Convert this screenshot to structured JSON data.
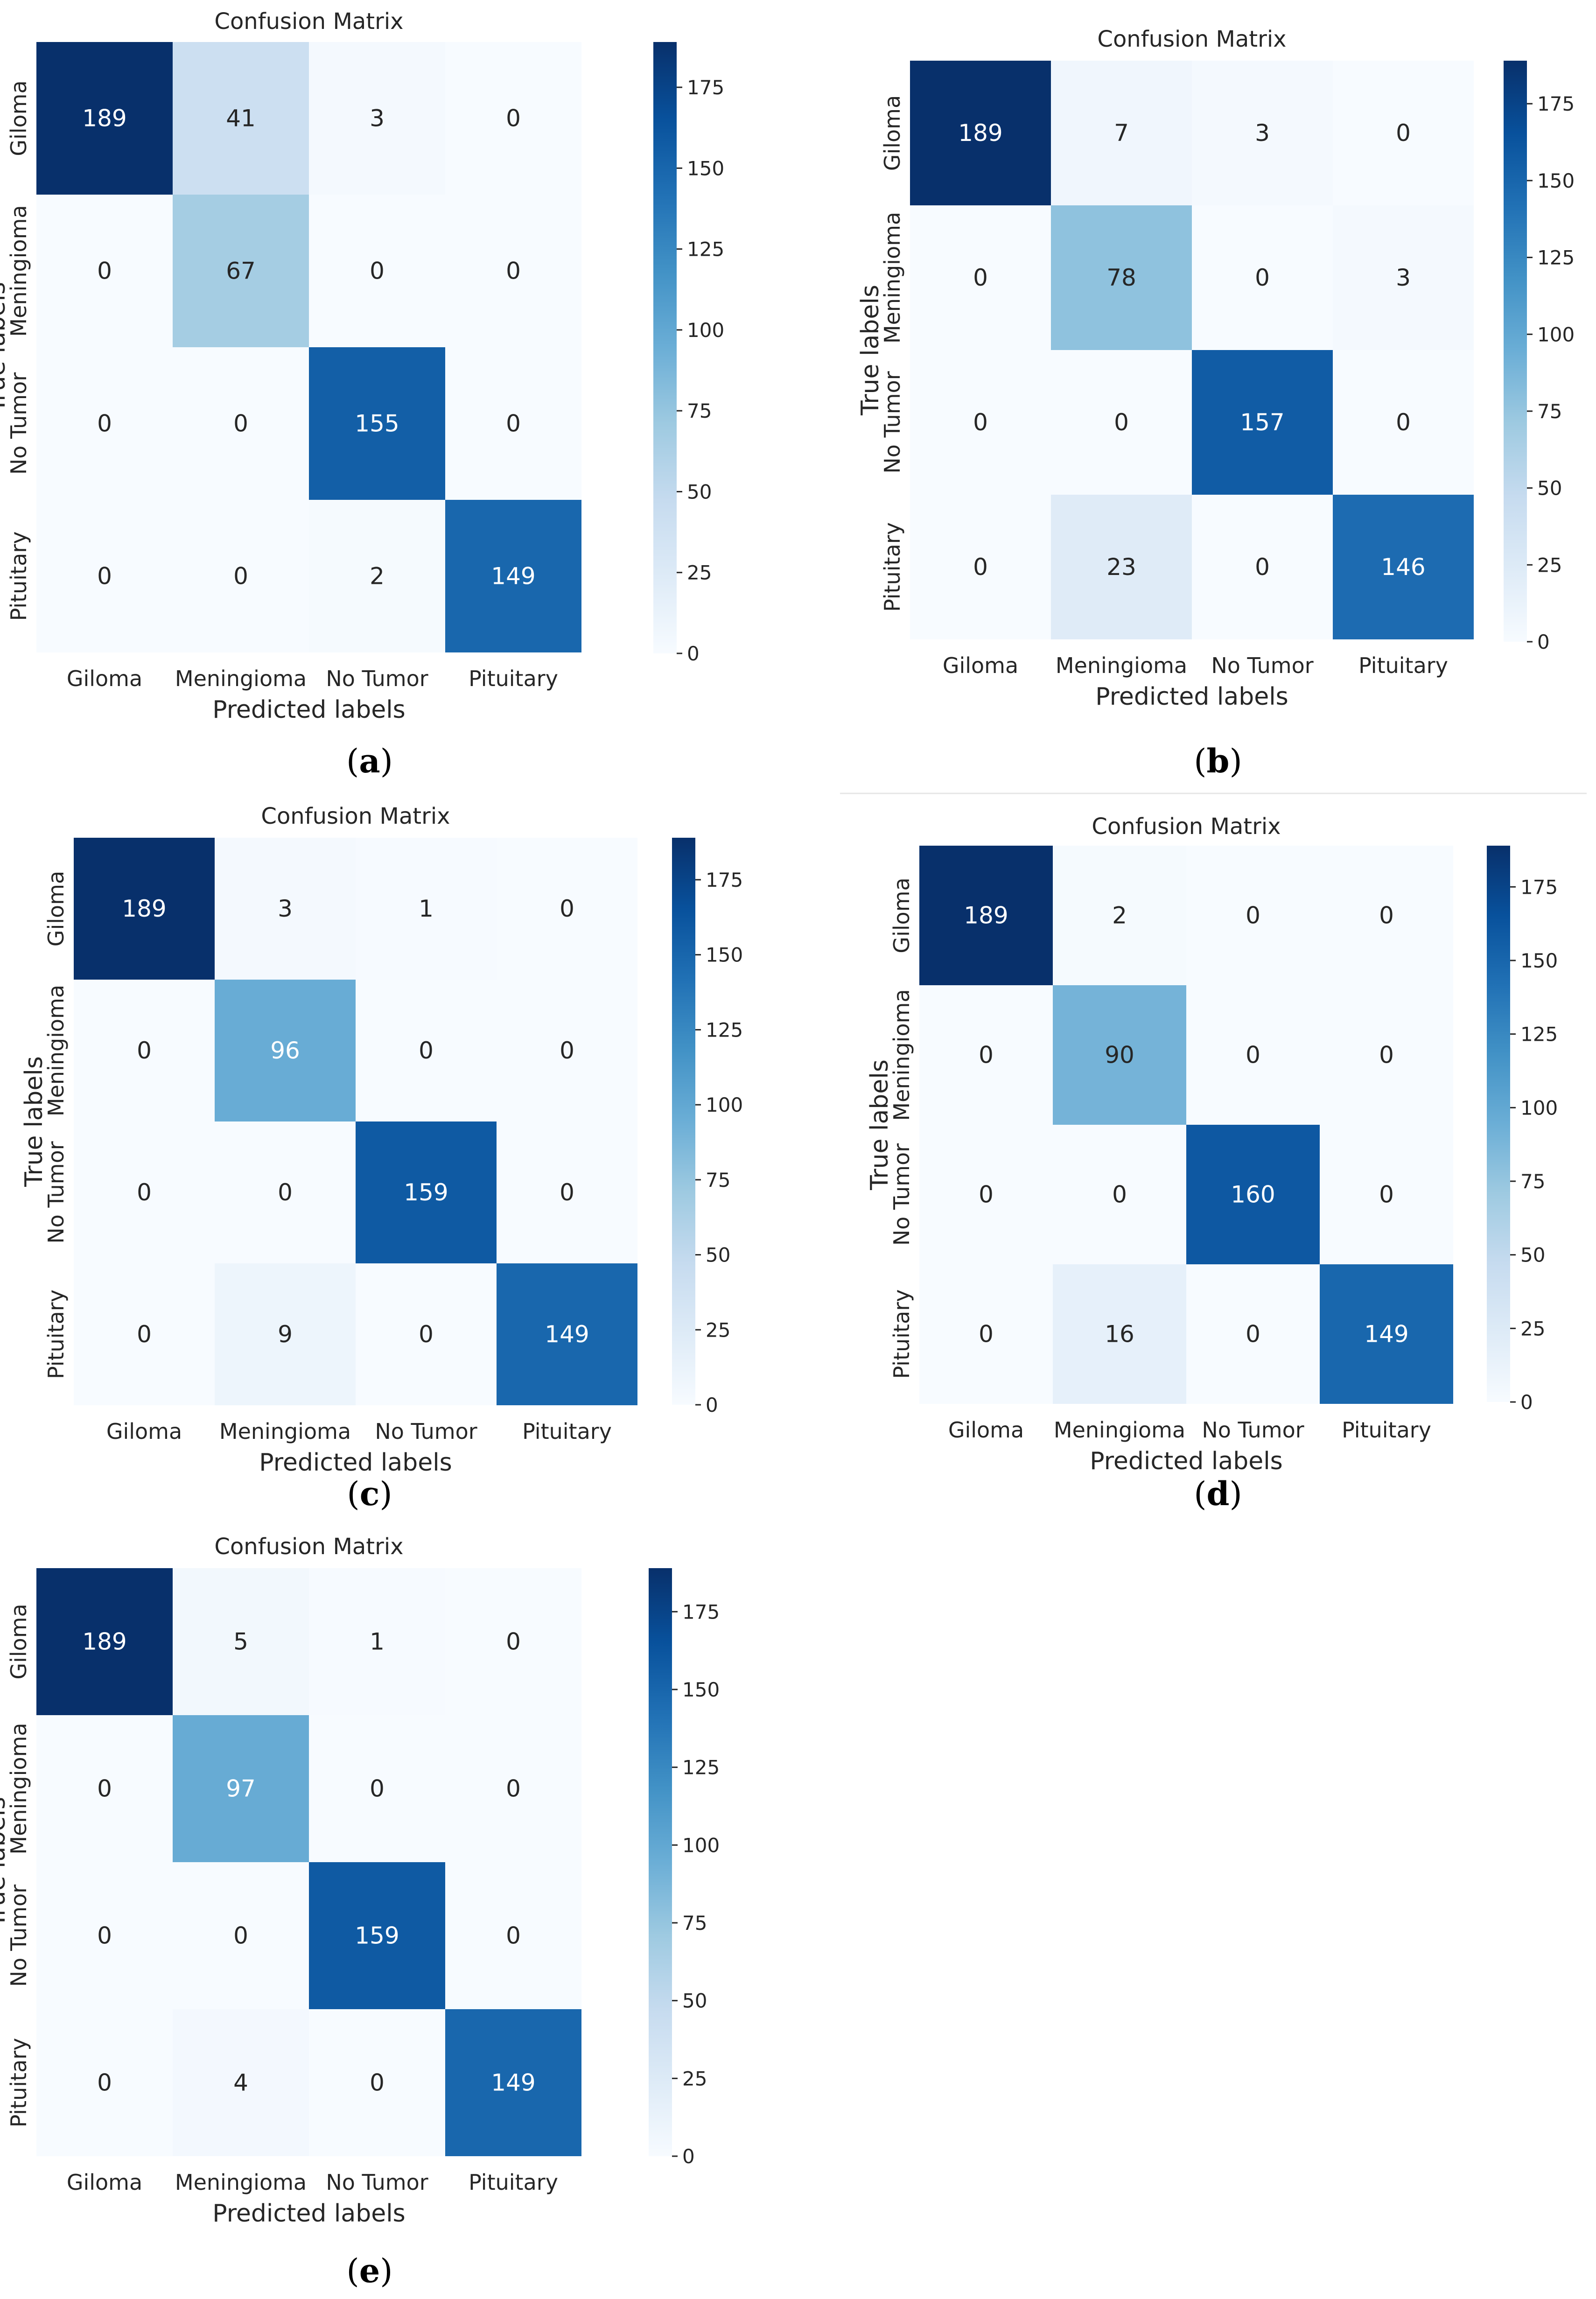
{
  "chart_data": [
    {
      "type": "heatmap",
      "panel_label": "a",
      "title": "Confusion Matrix",
      "xlabel": "Predicted labels",
      "ylabel": "True labels",
      "x_categories": [
        "Giloma",
        "Meningioma",
        "No Tumor",
        "Pituitary"
      ],
      "y_categories": [
        "Giloma",
        "Meningioma",
        "No Tumor",
        "Pituitary"
      ],
      "values": [
        [
          189,
          41,
          3,
          0
        ],
        [
          0,
          67,
          0,
          0
        ],
        [
          0,
          0,
          155,
          0
        ],
        [
          0,
          0,
          2,
          149
        ]
      ],
      "colorbar": {
        "range": [
          0,
          189
        ],
        "ticks": [
          0,
          25,
          50,
          75,
          100,
          125,
          150,
          175
        ],
        "colormap": "Blues"
      }
    },
    {
      "type": "heatmap",
      "panel_label": "b",
      "title": "Confusion Matrix",
      "xlabel": "Predicted labels",
      "ylabel": "True labels",
      "x_categories": [
        "Giloma",
        "Meningioma",
        "No Tumor",
        "Pituitary"
      ],
      "y_categories": [
        "Giloma",
        "Meningioma",
        "No Tumor",
        "Pituitary"
      ],
      "values": [
        [
          189,
          7,
          3,
          0
        ],
        [
          0,
          78,
          0,
          3
        ],
        [
          0,
          0,
          157,
          0
        ],
        [
          0,
          23,
          0,
          146
        ]
      ],
      "colorbar": {
        "range": [
          0,
          189
        ],
        "ticks": [
          0,
          25,
          50,
          75,
          100,
          125,
          150,
          175
        ],
        "colormap": "Blues"
      }
    },
    {
      "type": "heatmap",
      "panel_label": "c",
      "title": "Confusion Matrix",
      "xlabel": "Predicted labels",
      "ylabel": "True labels",
      "x_categories": [
        "Giloma",
        "Meningioma",
        "No Tumor",
        "Pituitary"
      ],
      "y_categories": [
        "Giloma",
        "Meningioma",
        "No Tumor",
        "Pituitary"
      ],
      "values": [
        [
          189,
          3,
          1,
          0
        ],
        [
          0,
          96,
          0,
          0
        ],
        [
          0,
          0,
          159,
          0
        ],
        [
          0,
          9,
          0,
          149
        ]
      ],
      "colorbar": {
        "range": [
          0,
          189
        ],
        "ticks": [
          0,
          25,
          50,
          75,
          100,
          125,
          150,
          175
        ],
        "colormap": "Blues"
      }
    },
    {
      "type": "heatmap",
      "panel_label": "d",
      "title": "Confusion Matrix",
      "xlabel": "Predicted labels",
      "ylabel": "True labels",
      "x_categories": [
        "Giloma",
        "Meningioma",
        "No Tumor",
        "Pituitary"
      ],
      "y_categories": [
        "Giloma",
        "Meningioma",
        "No Tumor",
        "Pituitary"
      ],
      "values": [
        [
          189,
          2,
          0,
          0
        ],
        [
          0,
          90,
          0,
          0
        ],
        [
          0,
          0,
          160,
          0
        ],
        [
          0,
          16,
          0,
          149
        ]
      ],
      "colorbar": {
        "range": [
          0,
          189
        ],
        "ticks": [
          0,
          25,
          50,
          75,
          100,
          125,
          150,
          175
        ],
        "colormap": "Blues"
      }
    },
    {
      "type": "heatmap",
      "panel_label": "e",
      "title": "Confusion Matrix",
      "xlabel": "Predicted labels",
      "ylabel": "True labels",
      "x_categories": [
        "Giloma",
        "Meningioma",
        "No Tumor",
        "Pituitary"
      ],
      "y_categories": [
        "Giloma",
        "Meningioma",
        "No Tumor",
        "Pituitary"
      ],
      "values": [
        [
          189,
          5,
          1,
          0
        ],
        [
          0,
          97,
          0,
          0
        ],
        [
          0,
          0,
          159,
          0
        ],
        [
          0,
          4,
          0,
          149
        ]
      ],
      "colorbar": {
        "range": [
          0,
          189
        ],
        "ticks": [
          0,
          25,
          50,
          75,
          100,
          125,
          150,
          175
        ],
        "colormap": "Blues"
      }
    }
  ]
}
